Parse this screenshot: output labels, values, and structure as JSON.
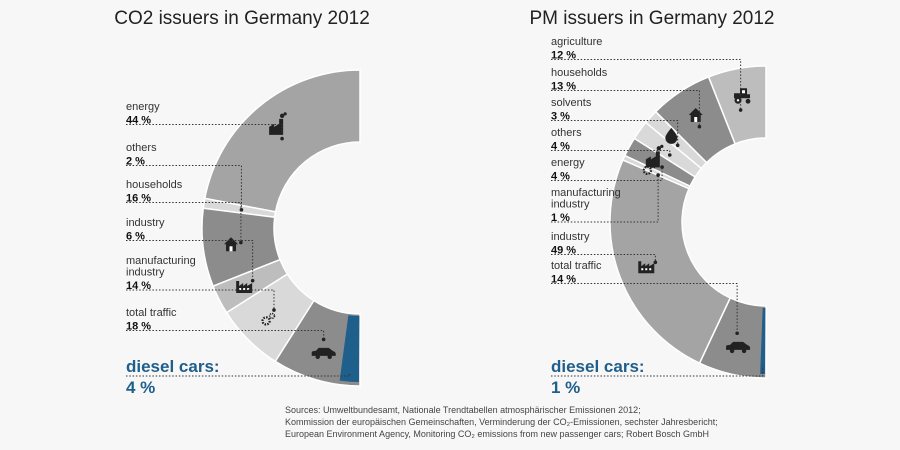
{
  "colors": {
    "diesel": "#1f5f8b",
    "segment_dark": "#8c8c8c",
    "segment_mid": "#a4a4a4",
    "segment_light": "#bdbdbd",
    "segment_pale": "#d9d9d9",
    "icon": "#222222"
  },
  "chart_data": [
    {
      "type": "pie",
      "variant": "half-donut",
      "title": "CO2 issuers in Germany 2012",
      "unit": "%",
      "segments": [
        {
          "label": "energy",
          "value": 44,
          "value_label": "44 %",
          "icon": "power-plant-icon"
        },
        {
          "label": "others",
          "value": 2,
          "value_label": "2 %",
          "icon": ""
        },
        {
          "label": "households",
          "value": 16,
          "value_label": "16 %",
          "icon": "house-icon"
        },
        {
          "label": "industry",
          "value": 6,
          "value_label": "6 %",
          "icon": "factory-icon"
        },
        {
          "label": "manufacturing industry",
          "value": 14,
          "value_label": "14 %",
          "icon": "gears-icon"
        },
        {
          "label": "total traffic",
          "value": 18,
          "value_label": "18 %",
          "icon": "car-icon"
        }
      ],
      "highlight": {
        "label": "diesel cars:",
        "value": 4,
        "value_label": "4 %",
        "part_of": "total traffic"
      }
    },
    {
      "type": "pie",
      "variant": "half-donut",
      "title": "PM issuers in Germany 2012",
      "unit": "%",
      "segments": [
        {
          "label": "agriculture",
          "value": 12,
          "value_label": "12 %",
          "icon": "tractor-icon"
        },
        {
          "label": "households",
          "value": 13,
          "value_label": "13 %",
          "icon": "house-icon"
        },
        {
          "label": "solvents",
          "value": 3,
          "value_label": "3 %",
          "icon": "drop-icon"
        },
        {
          "label": "others",
          "value": 4,
          "value_label": "4 %",
          "icon": ""
        },
        {
          "label": "energy",
          "value": 4,
          "value_label": "4 %",
          "icon": "power-plant-icon"
        },
        {
          "label": "manufacturing industry",
          "value": 1,
          "value_label": "1 %",
          "icon": "gears-icon"
        },
        {
          "label": "industry",
          "value": 49,
          "value_label": "49 %",
          "icon": "factory-icon"
        },
        {
          "label": "total traffic",
          "value": 14,
          "value_label": "14 %",
          "icon": "car-icon"
        }
      ],
      "highlight": {
        "label": "diesel cars:",
        "value": 1,
        "value_label": "1 %",
        "part_of": "total traffic"
      }
    }
  ],
  "sources": [
    "Sources: Umweltbundesamt, Nationale Trendtabellen atmosphärischer Emissionen 2012;",
    "Kommission der europäischen Gemeinschaften, Verminderung der CO₂-Emissionen, sechster Jahresbericht;",
    "European Environment Agency, Monitoring CO₂ emissions from new passenger cars; Robert Bosch GmbH"
  ]
}
